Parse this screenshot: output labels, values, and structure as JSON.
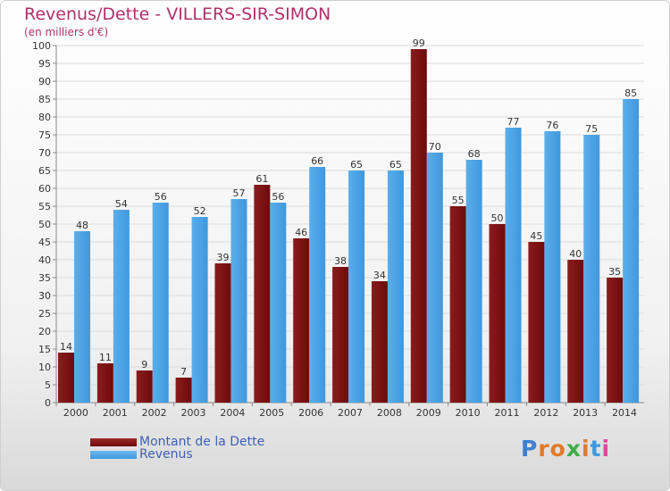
{
  "header": {
    "title": "Revenus/Dette - VILLERS-SIR-SIMON",
    "subtitle": "(en milliers d'€)"
  },
  "colors": {
    "dette": "#6e0b0b",
    "revenus": "#3f98de",
    "title": "#b0306a",
    "legend_text": "#3d5fb5"
  },
  "legend": {
    "dette_label": "Montant de la Dette",
    "revenus_label": "Revenus"
  },
  "logo": {
    "text": "Proxiti"
  },
  "chart_data": {
    "type": "bar",
    "title": "Revenus/Dette - VILLERS-SIR-SIMON",
    "subtitle": "(en milliers d'€)",
    "categories": [
      "2000",
      "2001",
      "2002",
      "2003",
      "2004",
      "2005",
      "2006",
      "2007",
      "2008",
      "2009",
      "2010",
      "2011",
      "2012",
      "2013",
      "2014"
    ],
    "series": [
      {
        "name": "Montant de la Dette",
        "values": [
          14,
          11,
          9,
          7,
          39,
          61,
          46,
          38,
          34,
          99,
          55,
          50,
          45,
          40,
          35
        ]
      },
      {
        "name": "Revenus",
        "values": [
          48,
          54,
          56,
          52,
          57,
          56,
          66,
          65,
          65,
          70,
          68,
          77,
          76,
          75,
          85
        ]
      }
    ],
    "ylim": [
      0,
      100
    ],
    "ytick_step": 5,
    "grid": true,
    "legend_position": "bottom-left"
  }
}
